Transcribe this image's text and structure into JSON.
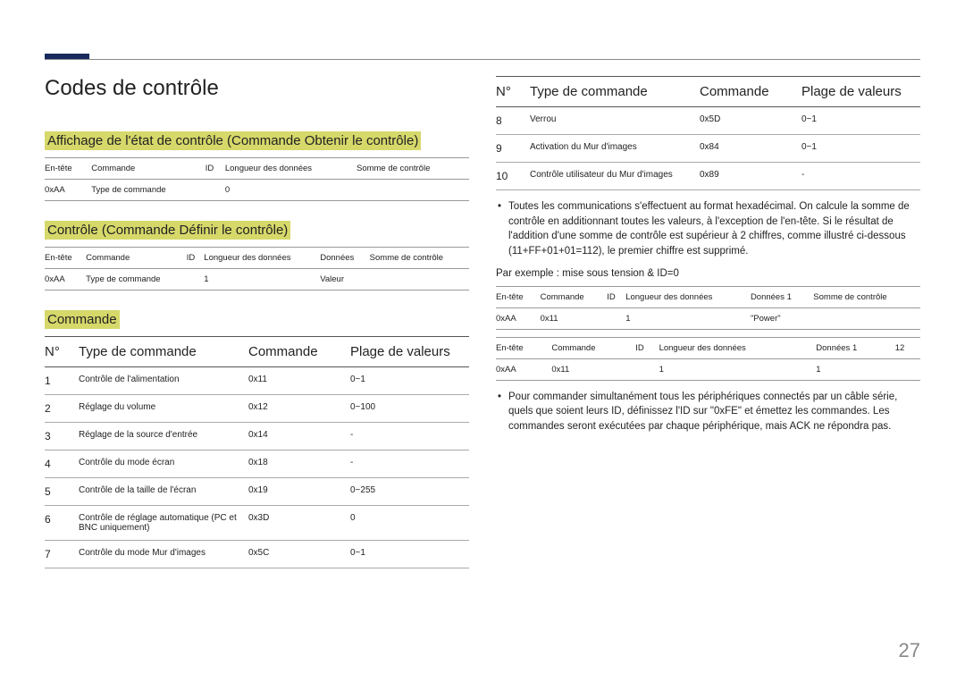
{
  "page": {
    "number": "27",
    "accent_color": "#1a2a5e",
    "highlight_color": "#d6d86a"
  },
  "title": "Codes de contrôle",
  "section1": {
    "heading": "Affichage de l'état de contrôle (Commande Obtenir le contrôle)",
    "headers": [
      "En-tête",
      "Commande",
      "ID",
      "Longueur des données",
      "Somme de contrôle"
    ],
    "row": [
      "0xAA",
      "Type de commande",
      "",
      "0",
      ""
    ]
  },
  "section2": {
    "heading": "Contrôle (Commande Définir le contrôle)",
    "headers": [
      "En-tête",
      "Commande",
      "ID",
      "Longueur des données",
      "Données",
      "Somme de contrôle"
    ],
    "row": [
      "0xAA",
      "Type de commande",
      "",
      "1",
      "Valeur",
      ""
    ]
  },
  "cmd_section_heading": "Commande",
  "cmd_headers": {
    "n": "N°",
    "type": "Type de commande",
    "cmd": "Commande",
    "range": "Plage de valeurs"
  },
  "cmd_rows_left": [
    {
      "n": "1",
      "type": "Contrôle de l'alimentation",
      "cmd": "0x11",
      "range": "0~1"
    },
    {
      "n": "2",
      "type": "Réglage du volume",
      "cmd": "0x12",
      "range": "0~100"
    },
    {
      "n": "3",
      "type": "Réglage de la source d'entrée",
      "cmd": "0x14",
      "range": "-"
    },
    {
      "n": "4",
      "type": "Contrôle du mode écran",
      "cmd": "0x18",
      "range": "-"
    },
    {
      "n": "5",
      "type": "Contrôle de la taille de l'écran",
      "cmd": "0x19",
      "range": "0~255"
    },
    {
      "n": "6",
      "type": "Contrôle de réglage automatique (PC et BNC uniquement)",
      "cmd": "0x3D",
      "range": "0"
    },
    {
      "n": "7",
      "type": "Contrôle du mode Mur d'images",
      "cmd": "0x5C",
      "range": "0~1"
    }
  ],
  "cmd_rows_right": [
    {
      "n": "8",
      "type": "Verrou",
      "cmd": "0x5D",
      "range": "0~1"
    },
    {
      "n": "9",
      "type": "Activation du Mur d'images",
      "cmd": "0x84",
      "range": "0~1"
    },
    {
      "n": "10",
      "type": "Contrôle utilisateur du Mur d'images",
      "cmd": "0x89",
      "range": "-"
    }
  ],
  "bullet1": "Toutes les communications s'effectuent au format hexadécimal. On calcule la somme de contrôle en additionnant toutes les valeurs, à l'exception de l'en-tête. Si le résultat de l'addition d'une somme de contrôle est supérieur à 2 chiffres, comme illustré ci-dessous (11+FF+01+01=112), le premier chiffre est supprimé.",
  "example_label": "Par exemple : mise sous tension & ID=0",
  "ex_headers": [
    "En-tête",
    "Commande",
    "ID",
    "Longueur des données",
    "Données 1",
    "Somme de contrôle"
  ],
  "ex1_row": [
    "0xAA",
    "0x11",
    "",
    "1",
    "\"Power\"",
    ""
  ],
  "ex2_headers": [
    "En-tête",
    "Commande",
    "ID",
    "Longueur des données",
    "Données 1",
    "12"
  ],
  "ex2_row": [
    "0xAA",
    "0x11",
    "",
    "1",
    "1",
    ""
  ],
  "bullet2": "Pour commander simultanément tous les périphériques connectés par un câble série, quels que soient leurs ID, définissez l'ID sur \"0xFE\" et émettez les commandes. Les commandes seront exécutées par chaque périphérique, mais ACK ne répondra pas."
}
